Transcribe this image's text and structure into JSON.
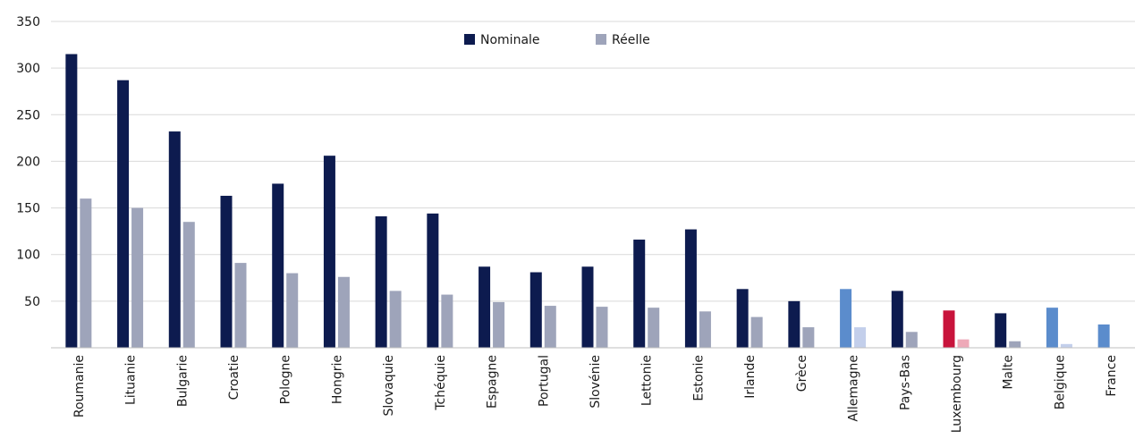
{
  "chart_data": {
    "type": "bar",
    "title": "",
    "xlabel": "",
    "ylabel": "",
    "ylim": [
      0,
      350
    ],
    "yticks": [
      50,
      100,
      150,
      200,
      250,
      300,
      350
    ],
    "grid": true,
    "legend_position": "top-center",
    "categories": [
      "Roumanie",
      "Lituanie",
      "Bulgarie",
      "Croatie",
      "Pologne",
      "Hongrie",
      "Slovaquie",
      "Tchéquie",
      "Espagne",
      "Portugal",
      "Slovénie",
      "Lettonie",
      "Estonie",
      "Irlande",
      "Grèce",
      "Allemagne",
      "Pays-Bas",
      "Luxembourg",
      "Malte",
      "Belgique",
      "France"
    ],
    "series": [
      {
        "name": "Nominale",
        "color": "#0d1b4f",
        "values": [
          315,
          287,
          232,
          163,
          176,
          206,
          141,
          144,
          87,
          81,
          87,
          116,
          127,
          63,
          50,
          63,
          61,
          40,
          37,
          43,
          25
        ]
      },
      {
        "name": "Réelle",
        "color": "#9ea4ba",
        "values": [
          160,
          150,
          135,
          91,
          80,
          76,
          61,
          57,
          49,
          45,
          44,
          43,
          39,
          33,
          22,
          22,
          17,
          9,
          7,
          4,
          null
        ]
      }
    ],
    "highlight_colors": {
      "Allemagne": {
        "nominal": "#5b8ccc",
        "real": "#c3cfeb"
      },
      "Luxembourg": {
        "nominal": "#c8133b",
        "real": "#eea9b8"
      },
      "Belgique": {
        "nominal": "#5b8ccc",
        "real": "#c3cfeb"
      },
      "France": {
        "nominal": "#5b8ccc",
        "real": "#c3cfeb"
      }
    }
  }
}
